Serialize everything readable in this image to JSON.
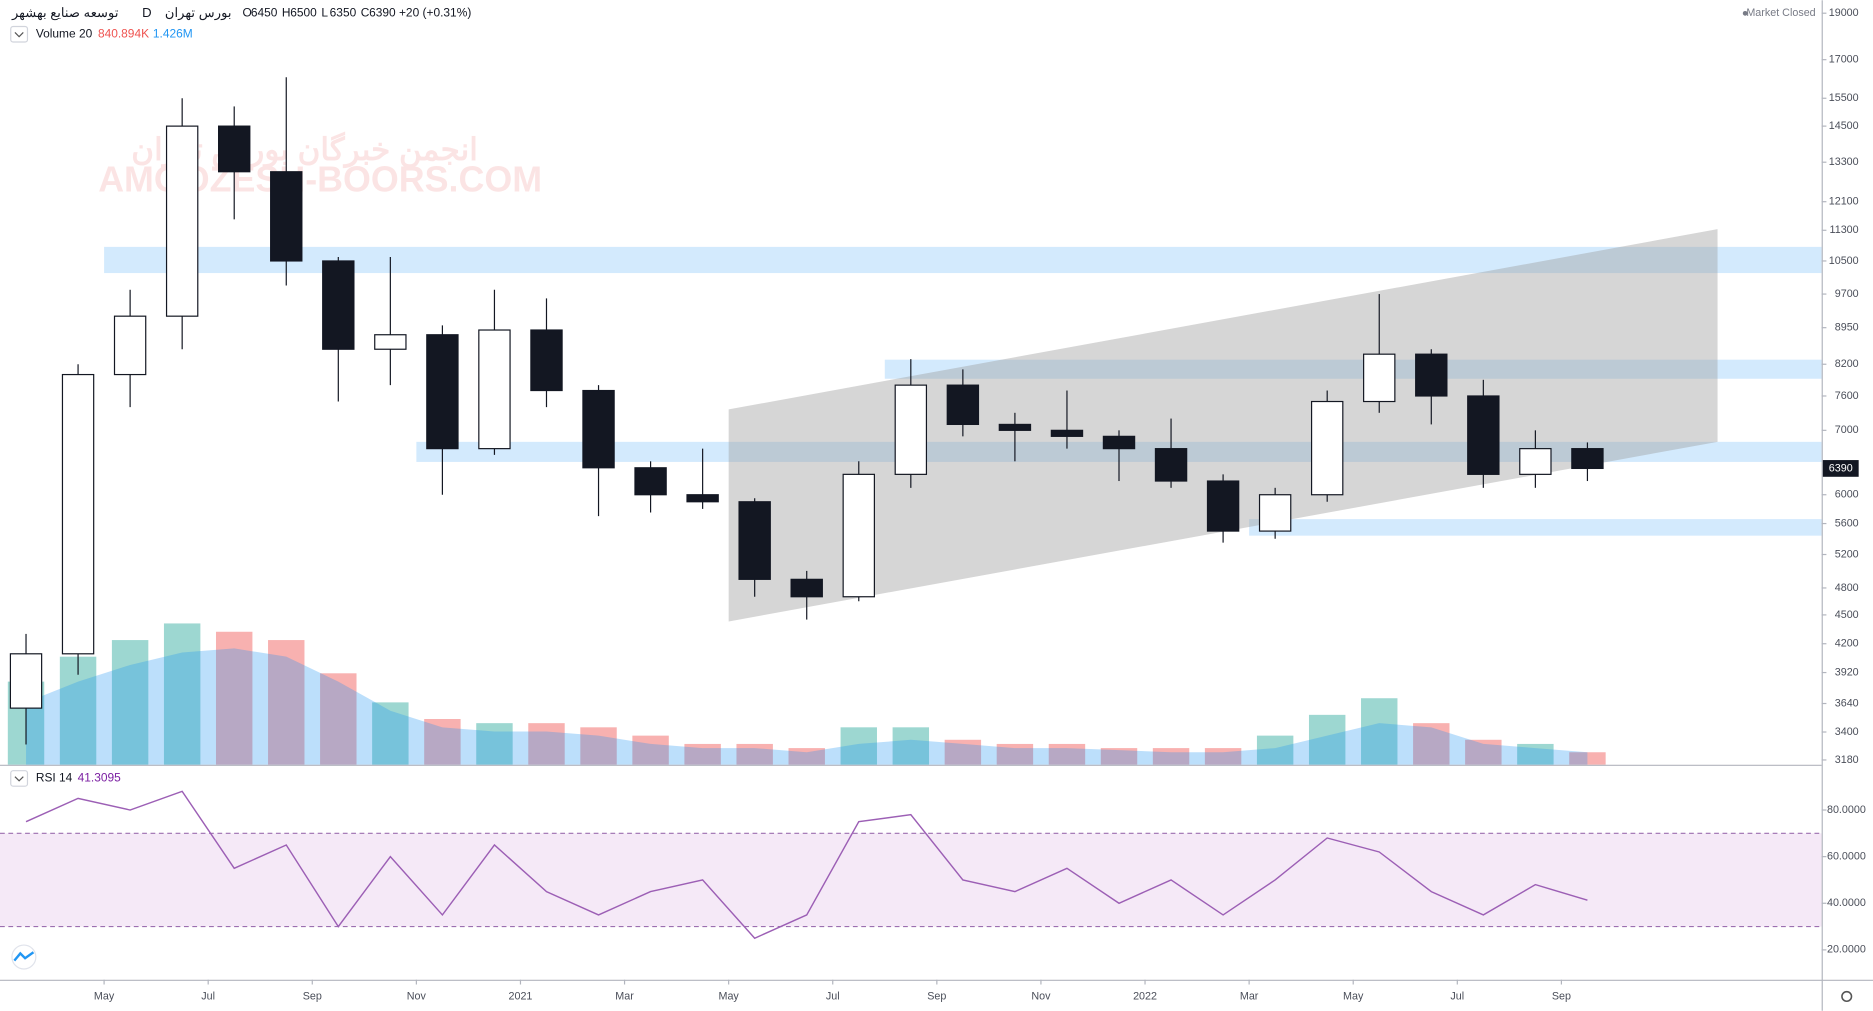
{
  "header": {
    "symbol": "توسعه صنایع بهشهر",
    "interval": "D",
    "exchange": "بورس تهران",
    "ohlc": [
      {
        "label": "O",
        "value": 6450
      },
      {
        "label": "H",
        "value": 6500
      },
      {
        "label": "L",
        "value": 6350
      },
      {
        "label": "C",
        "value": 6390
      }
    ],
    "change": "+20 (+0.31%)",
    "status": "Market Closed"
  },
  "watermark": [
    "انجمن خبرگان بورس تهران",
    "AMOOZESH-BOORS.COM"
  ],
  "chart_data": [
    {
      "type": "candlestick",
      "log_scale": true,
      "grid": false,
      "x": [
        "2020-03",
        "2020-04",
        "2020-05",
        "2020-06",
        "2020-07",
        "2020-08",
        "2020-09",
        "2020-10",
        "2020-11",
        "2020-12",
        "2021-01",
        "2021-02",
        "2021-03",
        "2021-04",
        "2021-05",
        "2021-06",
        "2021-07",
        "2021-08",
        "2021-09",
        "2021-10",
        "2021-11",
        "2021-12",
        "2022-01",
        "2022-02",
        "2022-03",
        "2022-04",
        "2022-05",
        "2022-06",
        "2022-07",
        "2022-08",
        "2022-09"
      ],
      "open": [
        3600,
        4100,
        8000,
        9200,
        14500,
        13000,
        10500,
        8500,
        8800,
        6700,
        8900,
        7700,
        6400,
        6000,
        5900,
        4900,
        4700,
        6300,
        7800,
        7100,
        7000,
        6900,
        6700,
        6200,
        5500,
        6000,
        7500,
        8400,
        7600,
        6300,
        6700
      ],
      "high": [
        4300,
        8200,
        9800,
        15500,
        15200,
        16300,
        10600,
        10600,
        9000,
        9800,
        9600,
        7800,
        6500,
        6700,
        5950,
        5000,
        6500,
        8300,
        8100,
        7300,
        7700,
        7000,
        7200,
        6300,
        6100,
        7700,
        9700,
        8500,
        7900,
        7000,
        6800
      ],
      "low": [
        3300,
        3900,
        7400,
        8500,
        11600,
        9900,
        7500,
        7800,
        6000,
        6600,
        7400,
        5700,
        5750,
        5800,
        4700,
        4450,
        4650,
        6100,
        6900,
        6500,
        6700,
        6200,
        6100,
        5350,
        5400,
        5900,
        7300,
        7100,
        6100,
        6100,
        6200
      ],
      "close": [
        4100,
        8000,
        9200,
        14500,
        13000,
        10500,
        8500,
        8800,
        6700,
        8900,
        7700,
        6400,
        6000,
        5900,
        4900,
        4700,
        6300,
        7800,
        7100,
        7000,
        6900,
        6700,
        6200,
        5500,
        6000,
        7500,
        8400,
        7600,
        6300,
        6700,
        6390
      ],
      "up_color": "#131722",
      "down_color": "#131722",
      "xlim": [
        "2020-03",
        "2023-02"
      ],
      "ylim": [
        3144,
        19600
      ],
      "yticks": [
        3180,
        3400,
        3640,
        3920,
        4200,
        4500,
        4800,
        5200,
        5600,
        6000,
        7000,
        7600,
        8200,
        8950,
        9700,
        10500,
        11300,
        12100,
        13300,
        14500,
        15500,
        17000,
        19000
      ],
      "xticks": [
        {
          "value": "2020-05",
          "label": "May"
        },
        {
          "value": "2020-07",
          "label": "Jul"
        },
        {
          "value": "2020-09",
          "label": "Sep"
        },
        {
          "value": "2020-11",
          "label": "Nov"
        },
        {
          "value": "2021-01",
          "label": "2021"
        },
        {
          "value": "2021-03",
          "label": "Mar"
        },
        {
          "value": "2021-05",
          "label": "May"
        },
        {
          "value": "2021-07",
          "label": "Jul"
        },
        {
          "value": "2021-09",
          "label": "Sep"
        },
        {
          "value": "2021-11",
          "label": "Nov"
        },
        {
          "value": "2022-01",
          "label": "2022"
        },
        {
          "value": "2022-03",
          "label": "Mar"
        },
        {
          "value": "2022-05",
          "label": "May"
        },
        {
          "value": "2022-07",
          "label": "Jul"
        },
        {
          "value": "2022-09",
          "label": "Sep"
        }
      ],
      "zones": [
        {
          "from": "2020-05",
          "low": 10200,
          "high": 10860
        },
        {
          "from": "2021-08",
          "low": 7920,
          "high": 8290
        },
        {
          "from": "2020-11",
          "low": 6490,
          "high": 6810
        },
        {
          "from": "2022-03",
          "low": 5440,
          "high": 5660
        }
      ],
      "zone_color": "#90caf9",
      "channel": {
        "x": [
          "2021-05",
          "2022-12"
        ],
        "upper": [
          7360,
          11330
        ],
        "lower": [
          4430,
          6810
        ],
        "color": "#9e9e9e"
      }
    },
    {
      "type": "bar",
      "title": "Volume 20",
      "legend_labels": [
        "840.894K",
        "1.426M"
      ],
      "values": [
        20000000,
        26000000,
        30000000,
        34000000,
        32000000,
        30000000,
        22000000,
        15000000,
        11000000,
        10000000,
        10000000,
        9000000,
        7000000,
        5000000,
        5000000,
        4000000,
        9000000,
        9000000,
        6000000,
        5000000,
        5000000,
        4000000,
        4000000,
        4000000,
        7000000,
        12000000,
        16000000,
        10000000,
        6000000,
        5000000,
        3000000
      ],
      "ma_values": [
        15000000,
        20000000,
        24000000,
        27000000,
        28000000,
        26000000,
        20000000,
        13000000,
        9000000,
        8000000,
        8000000,
        7000000,
        5000000,
        4000000,
        4000000,
        3000000,
        5000000,
        6000000,
        5000000,
        4000000,
        4000000,
        3500000,
        3000000,
        3000000,
        4000000,
        7000000,
        10000000,
        9000000,
        5000000,
        4000000,
        3000000
      ],
      "ylim": [
        0,
        46000000
      ],
      "up_color": "#26a69a",
      "down_color": "#ef5350",
      "ma_color": "#2196f3"
    },
    {
      "type": "line",
      "title": "RSI 14",
      "color": "#9c5fb5",
      "values": [
        75,
        85,
        80,
        88,
        55,
        65,
        30,
        60,
        35,
        65,
        45,
        35,
        45,
        50,
        25,
        35,
        75,
        78,
        50,
        45,
        55,
        40,
        50,
        35,
        50,
        68,
        62,
        45,
        35,
        48,
        41.3095
      ],
      "ylim": [
        7.2,
        97.9
      ],
      "band": [
        30,
        70
      ],
      "band_color": "#9c27b0",
      "yticks": [
        {
          "value": 20,
          "label": "20.0000"
        },
        {
          "value": 40,
          "label": "40.0000"
        },
        {
          "value": 60,
          "label": "60.0000"
        },
        {
          "value": 80,
          "label": "80.0000"
        }
      ]
    }
  ]
}
